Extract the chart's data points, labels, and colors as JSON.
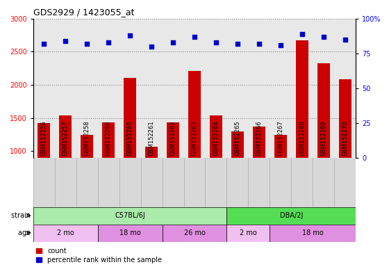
{
  "title": "GDS2929 / 1423055_at",
  "samples": [
    "GSM152256",
    "GSM152257",
    "GSM152258",
    "GSM152259",
    "GSM152260",
    "GSM152261",
    "GSM152262",
    "GSM152263",
    "GSM152264",
    "GSM152265",
    "GSM152266",
    "GSM152267",
    "GSM152268",
    "GSM152269",
    "GSM152270"
  ],
  "counts": [
    1420,
    1540,
    1240,
    1430,
    2110,
    1060,
    1430,
    2210,
    1540,
    1290,
    1370,
    1240,
    2670,
    2330,
    2080
  ],
  "percentile_ranks": [
    82,
    84,
    82,
    83,
    88,
    80,
    83,
    87,
    83,
    82,
    82,
    81,
    89,
    87,
    85
  ],
  "ylim_left": [
    900,
    3000
  ],
  "ylim_right": [
    0,
    100
  ],
  "yticks_left": [
    1000,
    1500,
    2000,
    2500,
    3000
  ],
  "yticks_right": [
    0,
    25,
    50,
    75,
    100
  ],
  "bar_color": "#cc0000",
  "dot_color": "#0000cc",
  "plot_bg": "#e8e8e8",
  "strain_groups": [
    {
      "label": "C57BL/6J",
      "start": 0,
      "end": 9,
      "color": "#aaeaaa"
    },
    {
      "label": "DBA/2J",
      "start": 9,
      "end": 15,
      "color": "#55dd55"
    }
  ],
  "age_groups": [
    {
      "label": "2 mo",
      "start": 0,
      "end": 3,
      "color": "#f0c0f0"
    },
    {
      "label": "18 mo",
      "start": 3,
      "end": 6,
      "color": "#e090e0"
    },
    {
      "label": "26 mo",
      "start": 6,
      "end": 9,
      "color": "#e090e0"
    },
    {
      "label": "2 mo",
      "start": 9,
      "end": 11,
      "color": "#f0c0f0"
    },
    {
      "label": "18 mo",
      "start": 11,
      "end": 15,
      "color": "#e090e0"
    }
  ]
}
